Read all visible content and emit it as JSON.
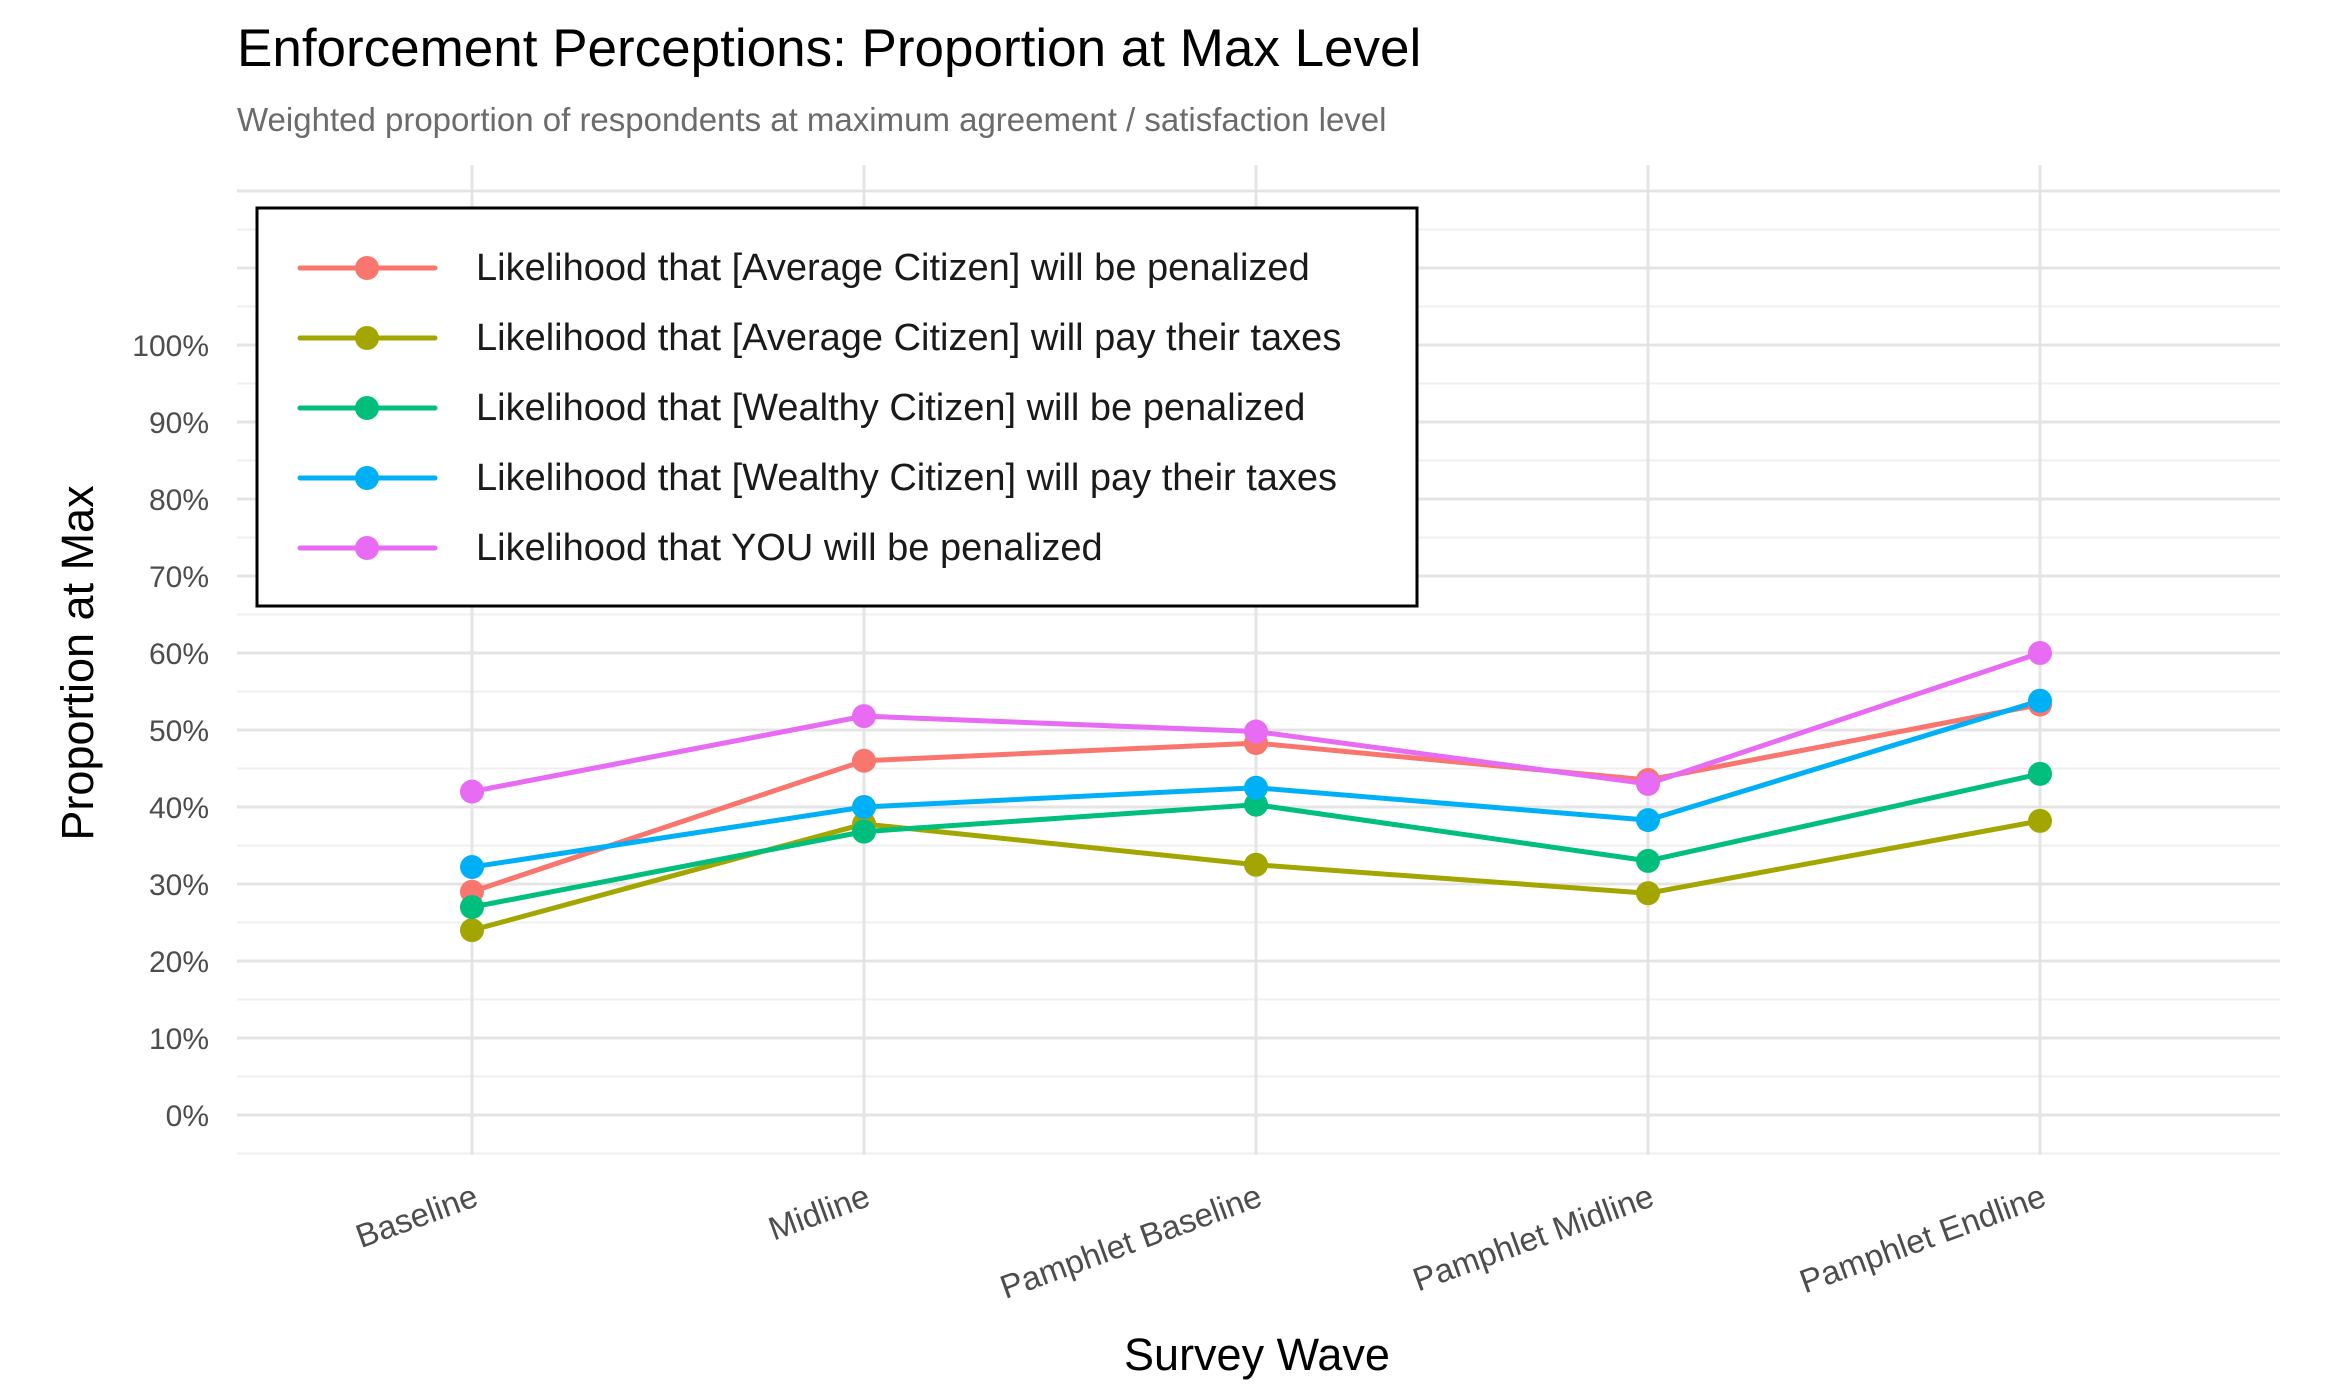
{
  "chart_data": {
    "type": "line",
    "title": "Enforcement Perceptions: Proportion at Max Level",
    "subtitle": "Weighted proportion of respondents at maximum agreement / satisfaction level",
    "xlabel": "Survey Wave",
    "ylabel": "Proportion at Max",
    "categories": [
      "Baseline",
      "Midline",
      "Pamphlet Baseline",
      "Pamphlet Midline",
      "Pamphlet Endline"
    ],
    "yticks": [
      0,
      10,
      20,
      30,
      40,
      50,
      60,
      70,
      80,
      90,
      100
    ],
    "ytick_labels": [
      "0%",
      "10%",
      "20%",
      "30%",
      "40%",
      "50%",
      "60%",
      "70%",
      "80%",
      "90%",
      "100%"
    ],
    "ylim": [
      -5,
      123
    ],
    "grid": true,
    "legend_position": "top-left",
    "series": [
      {
        "name": "Likelihood that [Average Citizen] will be penalized",
        "color": "#F8766D",
        "values": [
          29,
          46,
          48.3,
          43.5,
          53.3
        ]
      },
      {
        "name": "Likelihood that [Average Citizen] will pay their taxes",
        "color": "#A3A500",
        "values": [
          24,
          37.8,
          32.5,
          28.8,
          38.2
        ]
      },
      {
        "name": "Likelihood that [Wealthy Citizen] will be penalized",
        "color": "#00BF7D",
        "values": [
          27,
          36.8,
          40.3,
          33,
          44.3
        ]
      },
      {
        "name": "Likelihood that [Wealthy Citizen] will pay their taxes",
        "color": "#00B0F6",
        "values": [
          32.2,
          40,
          42.5,
          38.3,
          53.8
        ]
      },
      {
        "name": "Likelihood that YOU will be penalized",
        "color": "#E76BF3",
        "values": [
          42,
          51.8,
          49.8,
          43,
          60
        ]
      }
    ]
  }
}
